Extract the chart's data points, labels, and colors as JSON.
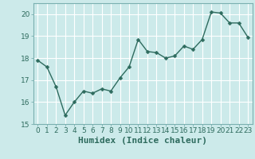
{
  "x": [
    0,
    1,
    2,
    3,
    4,
    5,
    6,
    7,
    8,
    9,
    10,
    11,
    12,
    13,
    14,
    15,
    16,
    17,
    18,
    19,
    20,
    21,
    22,
    23
  ],
  "y": [
    17.9,
    17.6,
    16.7,
    15.4,
    16.0,
    16.5,
    16.4,
    16.6,
    16.5,
    17.1,
    17.6,
    18.85,
    18.3,
    18.25,
    18.0,
    18.1,
    18.55,
    18.4,
    18.85,
    20.1,
    20.05,
    19.6,
    19.6,
    18.95
  ],
  "line_color": "#2e6b5e",
  "marker": "D",
  "marker_size": 2.5,
  "bg_color": "#cceaea",
  "grid_color": "#ffffff",
  "xlabel": "Humidex (Indice chaleur)",
  "ylabel": "",
  "title": "",
  "xlim": [
    -0.5,
    23.5
  ],
  "ylim": [
    15,
    20.5
  ],
  "yticks": [
    15,
    16,
    17,
    18,
    19,
    20
  ],
  "xticks": [
    0,
    1,
    2,
    3,
    4,
    5,
    6,
    7,
    8,
    9,
    10,
    11,
    12,
    13,
    14,
    15,
    16,
    17,
    18,
    19,
    20,
    21,
    22,
    23
  ],
  "tick_fontsize": 6.5,
  "xlabel_fontsize": 8,
  "line_width": 1.0
}
